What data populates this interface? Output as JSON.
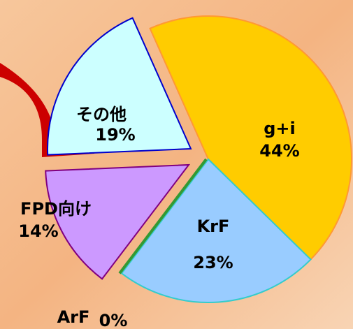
{
  "chart_data": {
    "type": "pie",
    "categories": [
      "g+i",
      "KrF",
      "ArF",
      "FPD向け",
      "その他"
    ],
    "values": [
      44,
      23,
      0,
      14,
      19
    ],
    "value_labels": [
      "44%",
      "23%",
      "0%",
      "14%",
      "19%"
    ],
    "colors": [
      "#ffcc00",
      "#99ccff",
      "#339933",
      "#cc99ff",
      "#ccffff"
    ],
    "edge_colors": [
      "#ff9933",
      "#33cccc",
      "#339933",
      "#800080",
      "#0000cc"
    ]
  }
}
